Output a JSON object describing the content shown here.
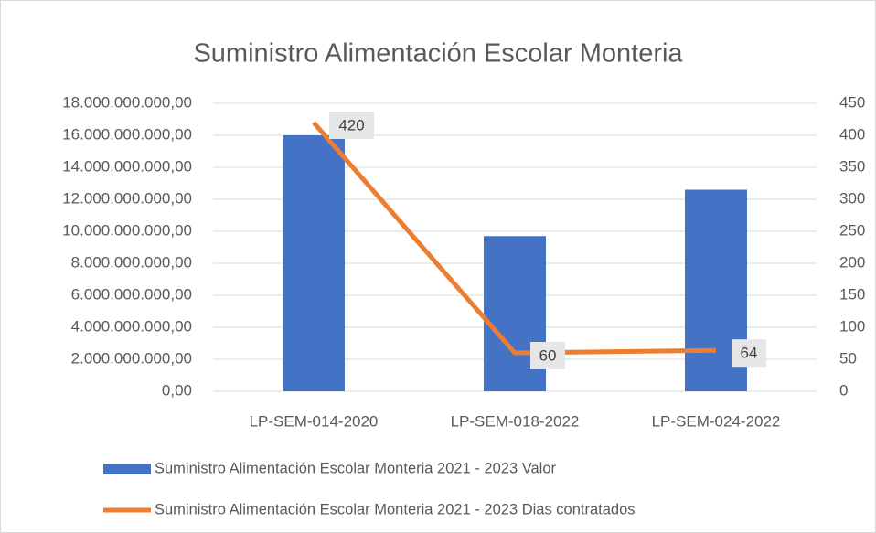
{
  "chart_data": {
    "type": "bar",
    "title": "Suministro Alimentación Escolar Monteria",
    "categories": [
      "LP-SEM-014-2020",
      "LP-SEM-018-2022",
      "LP-SEM-024-2022"
    ],
    "series": [
      {
        "name": "Suministro Alimentación Escolar Monteria 2021 - 2023 Valor",
        "color": "#4472c4",
        "type": "bar",
        "values": [
          16000000000,
          9700000000,
          12600000000
        ]
      },
      {
        "name": "Suministro Alimentación Escolar Monteria 2021 - 2023 Dias contratados",
        "color": "#ed7d31",
        "type": "line",
        "axis": "y2",
        "values": [
          420,
          60,
          64
        ],
        "data_labels": true
      }
    ],
    "ylim": [
      0,
      18000000000
    ],
    "yticks": [
      {
        "value": 0,
        "label": "0,00"
      },
      {
        "value": 2000000000,
        "label": "2.000.000.000,00"
      },
      {
        "value": 4000000000,
        "label": "4.000.000.000,00"
      },
      {
        "value": 6000000000,
        "label": "6.000.000.000,00"
      },
      {
        "value": 8000000000,
        "label": "8.000.000.000,00"
      },
      {
        "value": 10000000000,
        "label": "10.000.000.000,00"
      },
      {
        "value": 12000000000,
        "label": "12.000.000.000,00"
      },
      {
        "value": 14000000000,
        "label": "14.000.000.000,00"
      },
      {
        "value": 16000000000,
        "label": "16.000.000.000,00"
      },
      {
        "value": 18000000000,
        "label": "18.000.000.000,00"
      }
    ],
    "y2lim": [
      0,
      450
    ],
    "y2ticks": [
      0,
      50,
      100,
      150,
      200,
      250,
      300,
      350,
      400,
      450
    ],
    "grid": true,
    "legend": "bottom"
  }
}
